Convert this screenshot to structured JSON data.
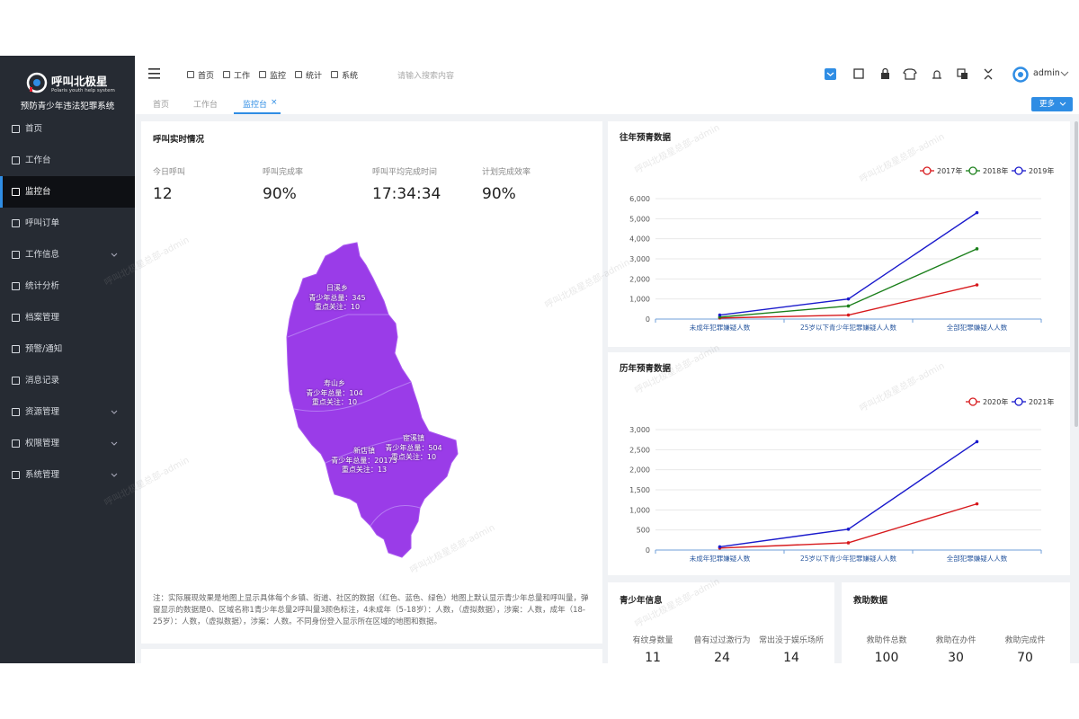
{
  "sidebar": {
    "logo_title": "呼叫北极星",
    "logo_subtitle": "Polaris youth help system",
    "system_name": "预防青少年违法犯罪系统",
    "active": 2,
    "menu": [
      {
        "label": "首页",
        "expandable": false
      },
      {
        "label": "工作台",
        "expandable": false
      },
      {
        "label": "监控台",
        "expandable": false
      },
      {
        "label": "呼叫订单",
        "expandable": false
      },
      {
        "label": "工作信息",
        "expandable": true
      },
      {
        "label": "统计分析",
        "expandable": false
      },
      {
        "label": "档案管理",
        "expandable": false
      },
      {
        "label": "预警/通知",
        "expandable": false
      },
      {
        "label": "消息记录",
        "expandable": false
      },
      {
        "label": "资源管理",
        "expandable": true
      },
      {
        "label": "权限管理",
        "expandable": true
      },
      {
        "label": "系统管理",
        "expandable": true
      }
    ]
  },
  "topbar": {
    "nav": [
      "首页",
      "工作",
      "监控",
      "统计",
      "系统"
    ],
    "search_placeholder": "请输入搜索内容",
    "user": "admin"
  },
  "tabs": {
    "items": [
      "首页",
      "工作台",
      "监控台"
    ],
    "active": 2,
    "close": "×",
    "more": "更多"
  },
  "watermark": "呼叫北极星总部-admin",
  "realtime": {
    "title": "呼叫实时情况",
    "stats": [
      {
        "label": "今日呼叫",
        "value": "12"
      },
      {
        "label": "呼叫完成率",
        "value": "90%"
      },
      {
        "label": "呼叫平均完成时间",
        "value": "17:34:34"
      },
      {
        "label": "计划完成效率",
        "value": "90%"
      }
    ],
    "map_regions": [
      {
        "name": "日溪乡",
        "total": "青少年总量：345",
        "focus": "重点关注：10"
      },
      {
        "name": "寿山乡",
        "total": "青少年总量：104",
        "focus": "重点关注：10"
      },
      {
        "name": "宦溪镇",
        "total": "青少年总量：504",
        "focus": "重点关注：10"
      },
      {
        "name": "新店镇",
        "total": "青少年总量：20173",
        "focus": "重点关注：13"
      }
    ],
    "note": "注：实际展现效果是地图上显示具体每个乡镇、街道、社区的数据（红色、蓝色、绿色）地图上默认显示青少年总量和呼叫量，弹窗显示的数据是0、区域名称1青少年总量2呼叫量3颜色标注，4未成年（5-18岁）：人数，（虚拟数据），涉案：人数，成年（18-25岁）：人数，（虚拟数据），涉案：人数。不同身份登入显示所在区域的地图和数据。"
  },
  "chart_data": [
    {
      "type": "line",
      "title": "往年预青数据",
      "categories": [
        "未成年犯罪嫌疑人数",
        "25岁以下青少年犯罪嫌疑人人数",
        "全部犯罪嫌疑人人数"
      ],
      "series": [
        {
          "name": "2017年",
          "color": "#d7191c",
          "values": [
            50,
            200,
            1700
          ]
        },
        {
          "name": "2018年",
          "color": "#1a7f1a",
          "values": [
            100,
            650,
            3500
          ]
        },
        {
          "name": "2019年",
          "color": "#1a1acc",
          "values": [
            200,
            1000,
            5300
          ]
        }
      ],
      "ylim": [
        0,
        6000
      ],
      "yticks": [
        0,
        {
          "value": 1000,
          "label": "1,000"
        },
        {
          "value": 2000,
          "label": "2,000"
        },
        {
          "value": 3000,
          "label": "3,000"
        },
        {
          "value": 4000,
          "label": "4,000"
        },
        {
          "value": 5000,
          "label": "5,000"
        },
        {
          "value": 6000,
          "label": "6,000"
        }
      ],
      "grid": true,
      "legend": "top-right"
    },
    {
      "type": "line",
      "title": "历年预青数据",
      "categories": [
        "未成年犯罪嫌疑人数",
        "25岁以下青少年犯罪嫌疑人人数",
        "全部犯罪嫌疑人人数"
      ],
      "series": [
        {
          "name": "2020年",
          "color": "#d7191c",
          "values": [
            50,
            180,
            1150
          ]
        },
        {
          "name": "2021年",
          "color": "#1a1acc",
          "values": [
            80,
            520,
            2700
          ]
        }
      ],
      "ylim": [
        0,
        3000
      ],
      "yticks": [
        0,
        500,
        {
          "value": 1000,
          "label": "1,000"
        },
        {
          "value": 1500,
          "label": "1,500"
        },
        {
          "value": 2000,
          "label": "2,000"
        },
        {
          "value": 2500,
          "label": "2,500"
        },
        {
          "value": 3000,
          "label": "3,000"
        }
      ],
      "grid": true,
      "legend": "top-right"
    }
  ],
  "youth_info": {
    "title": "青少年信息",
    "stats": [
      {
        "label": "有纹身数量",
        "value": "11"
      },
      {
        "label": "曾有过过激行为",
        "value": "24"
      },
      {
        "label": "常出没于娱乐场所",
        "value": "14"
      }
    ]
  },
  "rescue": {
    "title": "救助数据",
    "stats": [
      {
        "label": "救助件总数",
        "value": "100"
      },
      {
        "label": "救助在办件",
        "value": "30"
      },
      {
        "label": "救助完成件",
        "value": "70"
      }
    ]
  }
}
